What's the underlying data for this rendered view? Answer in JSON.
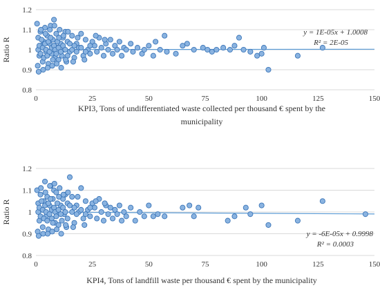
{
  "chart_data": [
    {
      "type": "scatter",
      "title": "",
      "xlabel_lines": [
        "KPI3, Tons of undifferentiated  waste collected  per thousand € spent by the",
        "municipality"
      ],
      "ylabel": "Ratio R",
      "xlim": [
        0,
        150
      ],
      "ylim": [
        0.8,
        1.2
      ],
      "xticks": [
        "0",
        "25",
        "50",
        "75",
        "100",
        "125",
        "150"
      ],
      "yticks": [
        "0.8",
        "0.9",
        "1",
        "1.1",
        "1.2"
      ],
      "grid": "horizontal",
      "point_color": "#8ab3e0",
      "edge_color": "#3a75b8",
      "trendline": {
        "slope": 1e-05,
        "intercept": 1.0008,
        "x_range": [
          0,
          150
        ],
        "color": "#5b9bd5"
      },
      "equation": [
        "y = 1E-05x + 1.0008",
        "R² = 2E-05"
      ],
      "points": [
        [
          0.5,
          1.13
        ],
        [
          1,
          1.06
        ],
        [
          1.5,
          0.97
        ],
        [
          2,
          1.09
        ],
        [
          2.5,
          1.02
        ],
        [
          3,
          0.94
        ],
        [
          3.5,
          1.04
        ],
        [
          4,
          1.11
        ],
        [
          4.5,
          0.99
        ],
        [
          5,
          1.07
        ],
        [
          5.5,
          0.93
        ],
        [
          6,
          1.03
        ],
        [
          6.5,
          1.12
        ],
        [
          7,
          0.98
        ],
        [
          7.5,
          1.05
        ],
        [
          8,
          1.15
        ],
        [
          8.5,
          0.96
        ],
        [
          9,
          1.08
        ],
        [
          9.5,
          1.01
        ],
        [
          10,
          0.95
        ],
        [
          10.5,
          1.1
        ],
        [
          11,
          1.03
        ],
        [
          11.5,
          0.97
        ],
        [
          12,
          1.06
        ],
        [
          12.5,
          1.0
        ],
        [
          13,
          1.09
        ],
        [
          13.5,
          0.94
        ],
        [
          14,
          1.04
        ],
        [
          15,
          0.99
        ],
        [
          16,
          1.07
        ],
        [
          17,
          0.96
        ],
        [
          18,
          1.03
        ],
        [
          19,
          1.01
        ],
        [
          20,
          1.08
        ],
        [
          21,
          0.97
        ],
        [
          22,
          1.05
        ],
        [
          23,
          1.0
        ],
        [
          24,
          0.98
        ],
        [
          25,
          1.04
        ],
        [
          26,
          1.02
        ],
        [
          27,
          0.99
        ],
        [
          28,
          1.06
        ],
        [
          29,
          1.01
        ],
        [
          30,
          0.97
        ],
        [
          31,
          1.03
        ],
        [
          32,
          1.0
        ],
        [
          33,
          1.05
        ],
        [
          34,
          0.98
        ],
        [
          35,
          1.02
        ],
        [
          36,
          1.0
        ],
        [
          37,
          1.04
        ],
        [
          38,
          0.97
        ],
        [
          39,
          1.01
        ],
        [
          40,
          1.0
        ],
        [
          42,
          1.03
        ],
        [
          43,
          0.99
        ],
        [
          45,
          1.01
        ],
        [
          47,
          0.98
        ],
        [
          48,
          1.0
        ],
        [
          50,
          1.02
        ],
        [
          52,
          0.97
        ],
        [
          53,
          1.04
        ],
        [
          55,
          1.0
        ],
        [
          57,
          1.07
        ],
        [
          58,
          0.99
        ],
        [
          62,
          0.98
        ],
        [
          65,
          1.02
        ],
        [
          67,
          1.03
        ],
        [
          70,
          1.0
        ],
        [
          74,
          1.01
        ],
        [
          76,
          1.0
        ],
        [
          78,
          0.99
        ],
        [
          80,
          1.0
        ],
        [
          83,
          1.01
        ],
        [
          86,
          1.0
        ],
        [
          88,
          1.02
        ],
        [
          90,
          1.06
        ],
        [
          92,
          1.0
        ],
        [
          95,
          0.99
        ],
        [
          98,
          0.97
        ],
        [
          100,
          0.98
        ],
        [
          101,
          1.01
        ],
        [
          103,
          0.9
        ],
        [
          116,
          0.97
        ],
        [
          127,
          1.01
        ],
        [
          1,
          1.0
        ],
        [
          1.5,
          1.02
        ],
        [
          2,
          0.98
        ],
        [
          2.5,
          1.05
        ],
        [
          3,
          1.01
        ],
        [
          3.5,
          0.96
        ],
        [
          4,
          1.03
        ],
        [
          4.5,
          1.0
        ],
        [
          5,
          0.97
        ],
        [
          5.5,
          1.04
        ],
        [
          6,
          0.99
        ],
        [
          6.5,
          1.06
        ],
        [
          7,
          1.01
        ],
        [
          7.5,
          0.95
        ],
        [
          8,
          1.02
        ],
        [
          8.5,
          1.0
        ],
        [
          9,
          0.98
        ],
        [
          9.5,
          1.04
        ],
        [
          10,
          1.01
        ],
        [
          11,
          0.99
        ],
        [
          12,
          1.02
        ],
        [
          13,
          1.0
        ],
        [
          14,
          0.97
        ],
        [
          15,
          1.03
        ],
        [
          16,
          1.0
        ],
        [
          17,
          1.02
        ],
        [
          18,
          0.99
        ],
        [
          20,
          1.01
        ],
        [
          22,
          0.99
        ],
        [
          24,
          1.02
        ],
        [
          0.8,
          0.92
        ],
        [
          1.2,
          0.89
        ],
        [
          2.2,
          1.1
        ],
        [
          3.2,
          0.9
        ],
        [
          4.2,
          1.08
        ],
        [
          5.2,
          0.91
        ],
        [
          6.2,
          1.1
        ],
        [
          7.2,
          0.92
        ],
        [
          8.2,
          1.12
        ],
        [
          9.2,
          0.93
        ],
        [
          10.2,
          1.06
        ],
        [
          11.2,
          0.91
        ],
        [
          12.2,
          1.07
        ],
        [
          13.2,
          0.95
        ],
        [
          14.2,
          1.09
        ],
        [
          16.5,
          0.94
        ],
        [
          18.5,
          1.06
        ],
        [
          21.5,
          0.95
        ],
        [
          26.5,
          1.07
        ],
        [
          30.5,
          1.05
        ]
      ]
    },
    {
      "type": "scatter",
      "title": "",
      "xlabel_lines": [
        "KPI4, Tons of landfill  waste per thousand € spent by the municipality"
      ],
      "ylabel": "Ratio R",
      "xlim": [
        0,
        150
      ],
      "ylim": [
        0.8,
        1.2
      ],
      "xticks": [
        "0",
        "25",
        "50",
        "75",
        "100",
        "125",
        "150"
      ],
      "yticks": [
        "0.8",
        "0.9",
        "1",
        "1.1",
        "1.2"
      ],
      "grid": "horizontal",
      "point_color": "#8ab3e0",
      "edge_color": "#3a75b8",
      "trendline": {
        "slope": -6e-05,
        "intercept": 0.9998,
        "x_range": [
          0,
          150
        ],
        "color": "#5b9bd5"
      },
      "equation": [
        "y = -6E-05x + 0.9998",
        "R² = 0.0003"
      ],
      "points": [
        [
          0.5,
          1.1
        ],
        [
          1,
          1.04
        ],
        [
          1.5,
          0.96
        ],
        [
          2,
          1.08
        ],
        [
          2.5,
          1.01
        ],
        [
          3,
          0.93
        ],
        [
          3.5,
          1.05
        ],
        [
          4,
          1.14
        ],
        [
          4.5,
          0.98
        ],
        [
          5,
          1.07
        ],
        [
          5.5,
          0.92
        ],
        [
          6,
          1.03
        ],
        [
          6.5,
          1.12
        ],
        [
          7,
          0.97
        ],
        [
          7.5,
          1.06
        ],
        [
          8,
          1.1
        ],
        [
          8.5,
          0.95
        ],
        [
          9,
          1.09
        ],
        [
          9.5,
          1.0
        ],
        [
          10,
          0.94
        ],
        [
          10.5,
          1.11
        ],
        [
          11,
          1.03
        ],
        [
          11.5,
          0.96
        ],
        [
          12,
          1.06
        ],
        [
          12.5,
          0.99
        ],
        [
          13,
          1.08
        ],
        [
          13.5,
          0.93
        ],
        [
          14,
          1.04
        ],
        [
          15,
          1.16
        ],
        [
          16,
          1.07
        ],
        [
          17,
          0.95
        ],
        [
          18,
          1.03
        ],
        [
          19,
          1.0
        ],
        [
          20,
          1.11
        ],
        [
          21,
          0.97
        ],
        [
          22,
          1.05
        ],
        [
          23,
          1.01
        ],
        [
          24,
          0.98
        ],
        [
          25,
          1.04
        ],
        [
          26,
          1.02
        ],
        [
          27,
          0.97
        ],
        [
          28,
          1.06
        ],
        [
          29,
          1.0
        ],
        [
          30,
          0.96
        ],
        [
          31,
          1.03
        ],
        [
          32,
          0.99
        ],
        [
          33,
          1.02
        ],
        [
          34,
          0.97
        ],
        [
          35,
          1.01
        ],
        [
          36,
          0.99
        ],
        [
          37,
          1.03
        ],
        [
          38,
          0.96
        ],
        [
          39,
          1.0
        ],
        [
          40,
          0.98
        ],
        [
          42,
          1.02
        ],
        [
          44,
          0.96
        ],
        [
          46,
          1.0
        ],
        [
          48,
          0.98
        ],
        [
          50,
          1.03
        ],
        [
          52,
          0.98
        ],
        [
          54,
          0.99
        ],
        [
          57,
          0.98
        ],
        [
          65,
          1.02
        ],
        [
          68,
          1.03
        ],
        [
          70,
          0.98
        ],
        [
          72,
          1.02
        ],
        [
          85,
          0.96
        ],
        [
          88,
          0.98
        ],
        [
          93,
          1.02
        ],
        [
          95,
          0.99
        ],
        [
          100,
          1.03
        ],
        [
          103,
          0.94
        ],
        [
          116,
          0.96
        ],
        [
          127,
          1.05
        ],
        [
          146,
          0.99
        ],
        [
          1,
          1.0
        ],
        [
          1.5,
          1.02
        ],
        [
          2,
          0.98
        ],
        [
          2.5,
          1.05
        ],
        [
          3,
          1.01
        ],
        [
          3.5,
          0.97
        ],
        [
          4,
          1.03
        ],
        [
          4.5,
          1.0
        ],
        [
          5,
          0.96
        ],
        [
          5.5,
          1.04
        ],
        [
          6,
          0.99
        ],
        [
          6.5,
          1.06
        ],
        [
          7,
          1.01
        ],
        [
          7.5,
          0.95
        ],
        [
          8,
          1.02
        ],
        [
          8.5,
          1.0
        ],
        [
          9,
          0.98
        ],
        [
          9.5,
          1.04
        ],
        [
          10,
          1.01
        ],
        [
          11,
          0.99
        ],
        [
          12,
          1.02
        ],
        [
          13,
          1.0
        ],
        [
          14,
          0.97
        ],
        [
          15,
          1.03
        ],
        [
          16,
          1.0
        ],
        [
          17,
          1.02
        ],
        [
          18,
          0.99
        ],
        [
          20,
          1.01
        ],
        [
          22,
          0.99
        ],
        [
          24,
          1.02
        ],
        [
          0.8,
          0.91
        ],
        [
          1.2,
          0.89
        ],
        [
          2.2,
          1.11
        ],
        [
          3.2,
          0.9
        ],
        [
          4.2,
          1.09
        ],
        [
          5.2,
          0.9
        ],
        [
          6.2,
          1.12
        ],
        [
          7.2,
          0.91
        ],
        [
          8.2,
          1.13
        ],
        [
          9.2,
          0.92
        ],
        [
          10.2,
          1.07
        ],
        [
          11.2,
          0.9
        ],
        [
          12.2,
          1.08
        ],
        [
          13.2,
          0.94
        ],
        [
          14.2,
          1.09
        ],
        [
          16.5,
          0.93
        ],
        [
          18.5,
          1.07
        ],
        [
          21.5,
          0.94
        ],
        [
          26.5,
          1.05
        ],
        [
          30.5,
          1.04
        ]
      ]
    }
  ]
}
